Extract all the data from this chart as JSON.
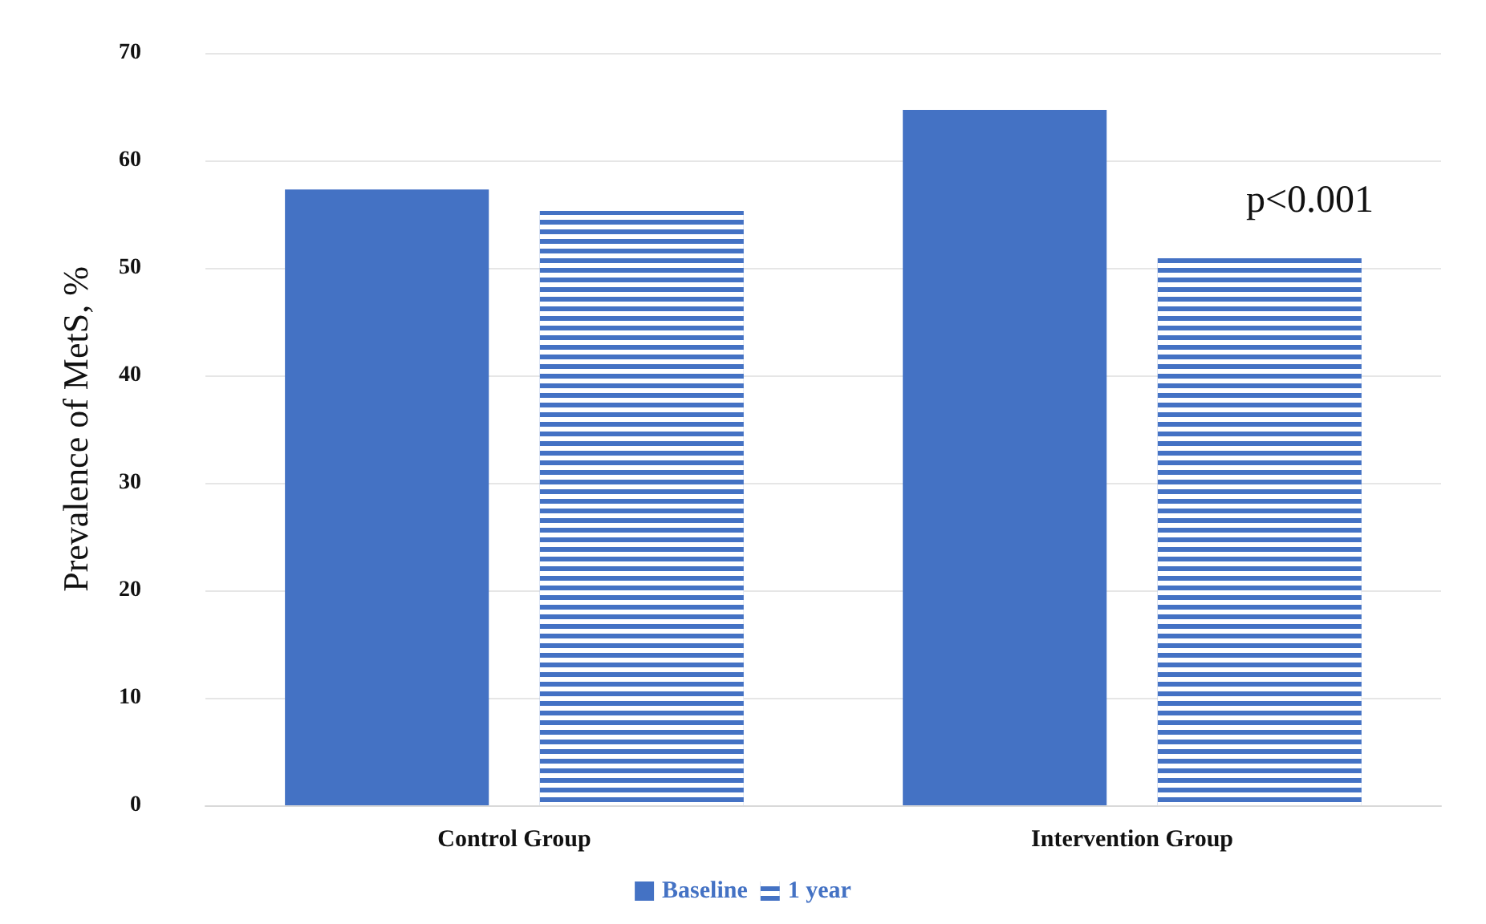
{
  "chart_data": {
    "type": "bar",
    "ylabel": "Prevalence of MetS, %",
    "categories": [
      "Control Group",
      "Intervention Group"
    ],
    "series": [
      {
        "name": "Baseline",
        "color": "#4472c4",
        "values": [
          57.3,
          64.7
        ]
      },
      {
        "name": "1 year",
        "color": "#4472c4",
        "values": [
          55.3,
          50.9
        ]
      }
    ],
    "ylim": [
      0,
      70
    ],
    "yticks": [
      0,
      10,
      20,
      30,
      40,
      50,
      60,
      70
    ],
    "grid": "y",
    "legend": "bottom",
    "annotations": [
      "p<0.001"
    ]
  }
}
